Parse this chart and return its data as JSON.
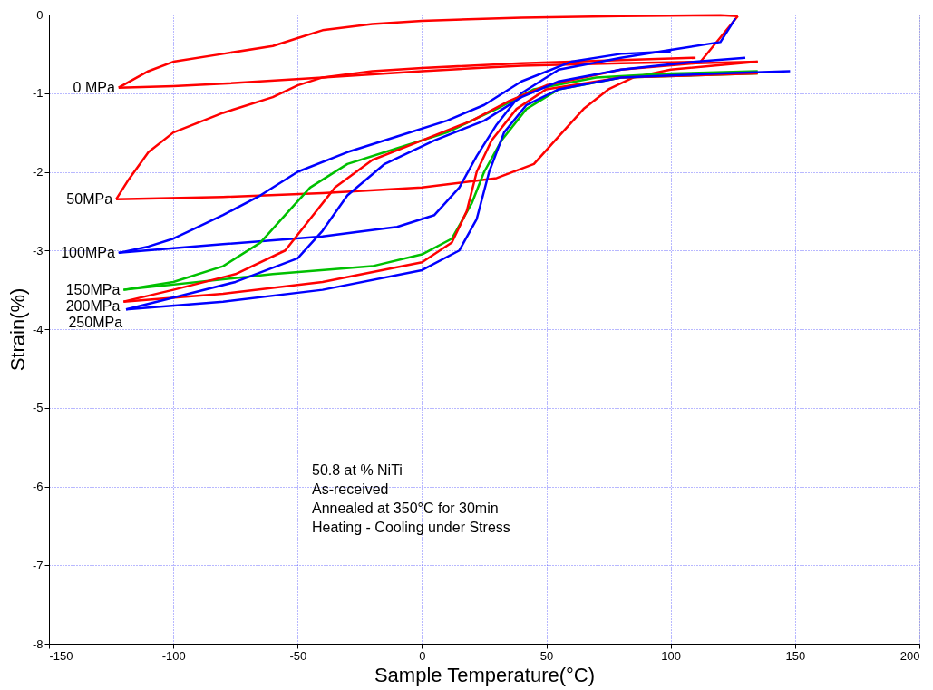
{
  "chart_data": {
    "type": "line",
    "xlabel": "Sample Temperature(°C)",
    "ylabel": "Strain(%)",
    "xlim": [
      -150,
      200
    ],
    "ylim": [
      -8,
      0
    ],
    "xticks": [
      -150,
      -100,
      -50,
      0,
      50,
      100,
      150,
      200
    ],
    "yticks": [
      -8,
      -7,
      -6,
      -5,
      -4,
      -3,
      -2,
      -1,
      0
    ],
    "grid": true,
    "legend": false,
    "marker": "none",
    "line_style": "solid",
    "annotations": [
      "50.8 at % NiTi",
      "As-received",
      "Annealed at 350°C for 30min",
      "Heating - Cooling under Stress"
    ],
    "series": [
      {
        "name": "0 MPa",
        "color": "#ff0000",
        "x": [
          -122,
          -110,
          -100,
          -80,
          -60,
          -50,
          -40,
          -20,
          0,
          40,
          80,
          120,
          127
        ],
        "values": [
          -0.93,
          -0.72,
          -0.6,
          -0.5,
          -0.4,
          -0.3,
          -0.2,
          -0.12,
          -0.08,
          -0.04,
          -0.02,
          -0.01,
          -0.02
        ]
      },
      {
        "color": "#ff0000",
        "x": [
          -122,
          -100,
          -80,
          -40,
          0,
          40,
          80,
          112,
          127
        ],
        "values": [
          -0.93,
          -0.91,
          -0.88,
          -0.8,
          -0.72,
          -0.65,
          -0.62,
          -0.6,
          -0.02
        ]
      },
      {
        "name": "50MPa",
        "color": "#ff0000",
        "x": [
          -123,
          -118,
          -110,
          -100,
          -80,
          -60,
          -50,
          -40,
          -20,
          0,
          40,
          80,
          110
        ],
        "values": [
          -2.35,
          -2.1,
          -1.75,
          -1.5,
          -1.25,
          -1.05,
          -0.9,
          -0.8,
          -0.72,
          -0.68,
          -0.62,
          -0.58,
          -0.55
        ]
      },
      {
        "color": "#ff0000",
        "x": [
          -123,
          -80,
          -40,
          0,
          30,
          45,
          55,
          65,
          75,
          85,
          100,
          135
        ],
        "values": [
          -2.35,
          -2.32,
          -2.27,
          -2.2,
          -2.08,
          -1.9,
          -1.55,
          -1.2,
          -0.95,
          -0.8,
          -0.7,
          -0.6
        ]
      },
      {
        "name": "100MPa",
        "color": "#0000ff",
        "x": [
          -122,
          -110,
          -100,
          -80,
          -65,
          -50,
          -30,
          -10,
          10,
          25,
          40,
          60,
          80,
          100
        ],
        "values": [
          -3.03,
          -2.95,
          -2.85,
          -2.55,
          -2.3,
          -2.0,
          -1.75,
          -1.55,
          -1.35,
          -1.15,
          -0.85,
          -0.6,
          -0.5,
          -0.47
        ]
      },
      {
        "color": "#0000ff",
        "x": [
          -122,
          -80,
          -40,
          -10,
          5,
          15,
          22,
          30,
          40,
          55,
          80,
          100,
          120,
          126
        ],
        "values": [
          -3.03,
          -2.92,
          -2.82,
          -2.7,
          -2.55,
          -2.2,
          -1.8,
          -1.4,
          -1.0,
          -0.7,
          -0.55,
          -0.45,
          -0.35,
          -0.05
        ]
      },
      {
        "name": "150MPa",
        "color": "#00c000",
        "x": [
          -120,
          -100,
          -80,
          -65,
          -55,
          -45,
          -30,
          -10,
          10,
          30,
          45,
          70,
          100,
          135
        ],
        "values": [
          -3.5,
          -3.4,
          -3.2,
          -2.9,
          -2.55,
          -2.2,
          -1.9,
          -1.7,
          -1.5,
          -1.2,
          -0.95,
          -0.8,
          -0.75,
          -0.72
        ]
      },
      {
        "color": "#00c000",
        "x": [
          -120,
          -60,
          -20,
          0,
          12,
          20,
          25,
          32,
          42,
          55,
          80,
          135
        ],
        "values": [
          -3.5,
          -3.3,
          -3.2,
          -3.05,
          -2.85,
          -2.4,
          -2.0,
          -1.6,
          -1.2,
          -0.95,
          -0.8,
          -0.75
        ]
      },
      {
        "name": "200MPa",
        "color": "#ff0000",
        "x": [
          -120,
          -100,
          -75,
          -55,
          -45,
          -35,
          -20,
          0,
          20,
          35,
          50,
          80,
          110,
          135
        ],
        "values": [
          -3.65,
          -3.5,
          -3.3,
          -3.0,
          -2.6,
          -2.2,
          -1.85,
          -1.6,
          -1.35,
          -1.1,
          -0.9,
          -0.7,
          -0.62,
          -0.6
        ]
      },
      {
        "color": "#ff0000",
        "x": [
          -120,
          -80,
          -40,
          0,
          12,
          18,
          22,
          28,
          38,
          50,
          80,
          135
        ],
        "values": [
          -3.65,
          -3.55,
          -3.4,
          -3.15,
          -2.9,
          -2.5,
          -2.0,
          -1.6,
          -1.2,
          -0.95,
          -0.8,
          -0.75
        ]
      },
      {
        "name": "250MPa",
        "color": "#0000ff",
        "x": [
          -119,
          -100,
          -75,
          -50,
          -40,
          -30,
          -15,
          5,
          25,
          40,
          55,
          80,
          110,
          130
        ],
        "values": [
          -3.75,
          -3.6,
          -3.4,
          -3.1,
          -2.75,
          -2.3,
          -1.9,
          -1.6,
          -1.35,
          -1.05,
          -0.85,
          -0.7,
          -0.6,
          -0.55
        ]
      },
      {
        "color": "#0000ff",
        "x": [
          -119,
          -80,
          -40,
          0,
          15,
          22,
          27,
          33,
          42,
          55,
          80,
          120,
          148
        ],
        "values": [
          -3.75,
          -3.65,
          -3.5,
          -3.25,
          -3.0,
          -2.6,
          -2.0,
          -1.5,
          -1.15,
          -0.95,
          -0.8,
          -0.75,
          -0.72
        ]
      }
    ]
  }
}
